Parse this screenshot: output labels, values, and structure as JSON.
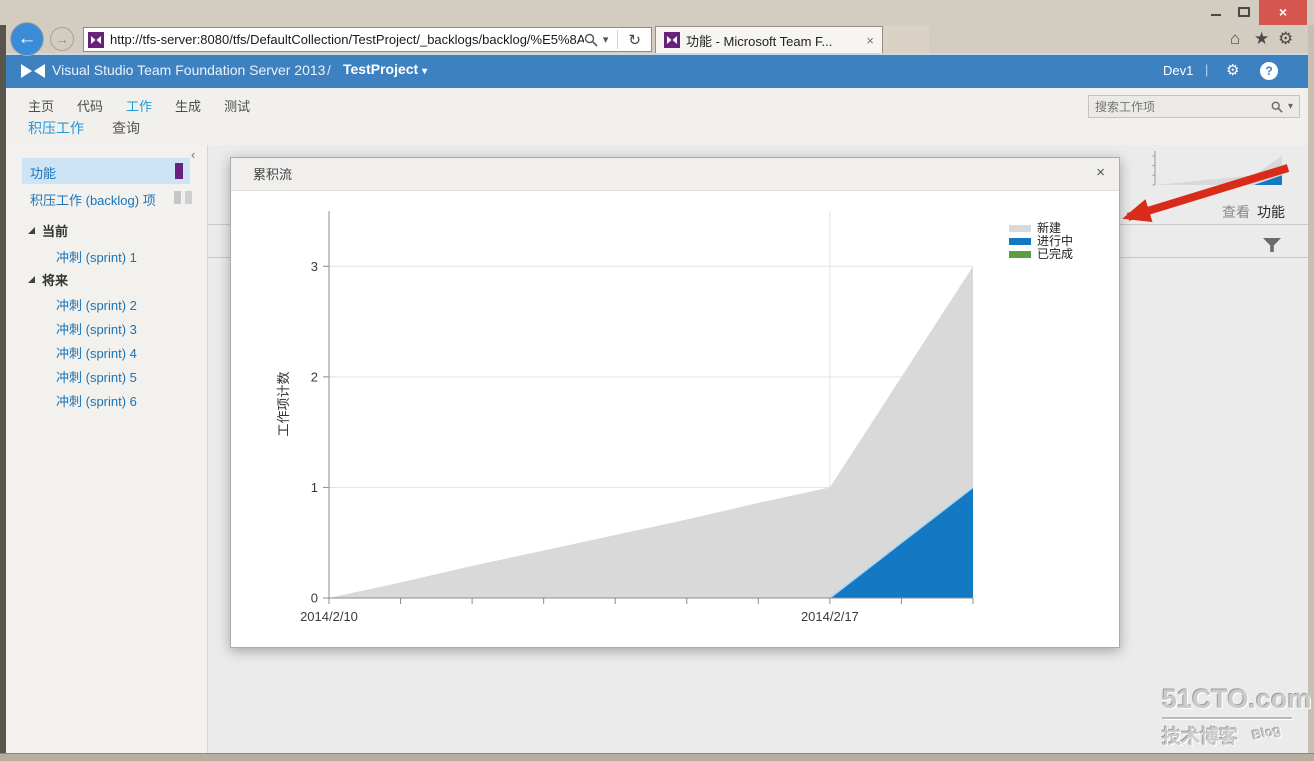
{
  "browser": {
    "url": "http://tfs-server:8080/tfs/DefaultCollection/TestProject/_backlogs/backlog/%E5%8A%",
    "tab_title": "功能 - Microsoft Team F..."
  },
  "icons": {
    "close": "×",
    "tab_close": "×",
    "modal_close": "×",
    "back": "←",
    "forward": "→",
    "refresh": "↻",
    "home": "⌂",
    "star": "★",
    "gear": "⚙",
    "caret": "▾",
    "chevron_collapse": "‹",
    "help": "?",
    "divider": "|"
  },
  "header": {
    "product": "Visual Studio Team Foundation Server 2013",
    "separator": "/",
    "project": "TestProject",
    "user": "Dev1"
  },
  "hub_nav": {
    "items": [
      "主页",
      "代码",
      "工作",
      "生成",
      "测试"
    ],
    "active": "工作"
  },
  "pivot_nav": {
    "items": [
      "积压工作",
      "查询"
    ],
    "active": "积压工作"
  },
  "search": {
    "placeholder": "搜索工作项"
  },
  "sidebar": {
    "items": [
      {
        "label": "功能"
      },
      {
        "label": "积压工作 (backlog) 项"
      }
    ],
    "groups": [
      {
        "label": "当前",
        "children": [
          "冲刺 (sprint) 1"
        ]
      },
      {
        "label": "将来",
        "children": [
          "冲刺 (sprint) 2",
          "冲刺 (sprint) 3",
          "冲刺 (sprint) 4",
          "冲刺 (sprint) 5",
          "冲刺 (sprint) 6"
        ]
      }
    ]
  },
  "right_panel": {
    "view_label": "查看",
    "view_value": "功能"
  },
  "modal": {
    "title": "累积流"
  },
  "chart_data": {
    "type": "area",
    "stacked": true,
    "title": "累积流",
    "ylabel": "工作项计数",
    "ylim": [
      0,
      3.5
    ],
    "yticks": [
      0,
      1,
      2,
      3
    ],
    "x": [
      "2014/2/10",
      "2014/2/11",
      "2014/2/12",
      "2014/2/13",
      "2014/2/14",
      "2014/2/15",
      "2014/2/16",
      "2014/2/17",
      "2014/2/18",
      "2014/2/19"
    ],
    "x_labels_shown": [
      "2014/2/10",
      "2014/2/17"
    ],
    "grid": true,
    "series": [
      {
        "name": "已完成",
        "color": "#5a9e44",
        "values": [
          0,
          0,
          0,
          0,
          0,
          0,
          0,
          0,
          0,
          0
        ]
      },
      {
        "name": "进行中",
        "color": "#1279c2",
        "edge": "#a9d6f2",
        "values": [
          0,
          0,
          0,
          0,
          0,
          0,
          0,
          0,
          0.5,
          1
        ]
      },
      {
        "name": "新建",
        "color": "#d9d9d9",
        "values": [
          0,
          0.14,
          0.29,
          0.43,
          0.57,
          0.71,
          0.86,
          1,
          1.5,
          2
        ]
      }
    ],
    "legend": {
      "position": "top-right",
      "entries": [
        "新建",
        "进行中",
        "已完成"
      ]
    }
  },
  "watermark": {
    "title": "51CTO.com",
    "subtitle": "技术博客",
    "tag": "Blog"
  }
}
